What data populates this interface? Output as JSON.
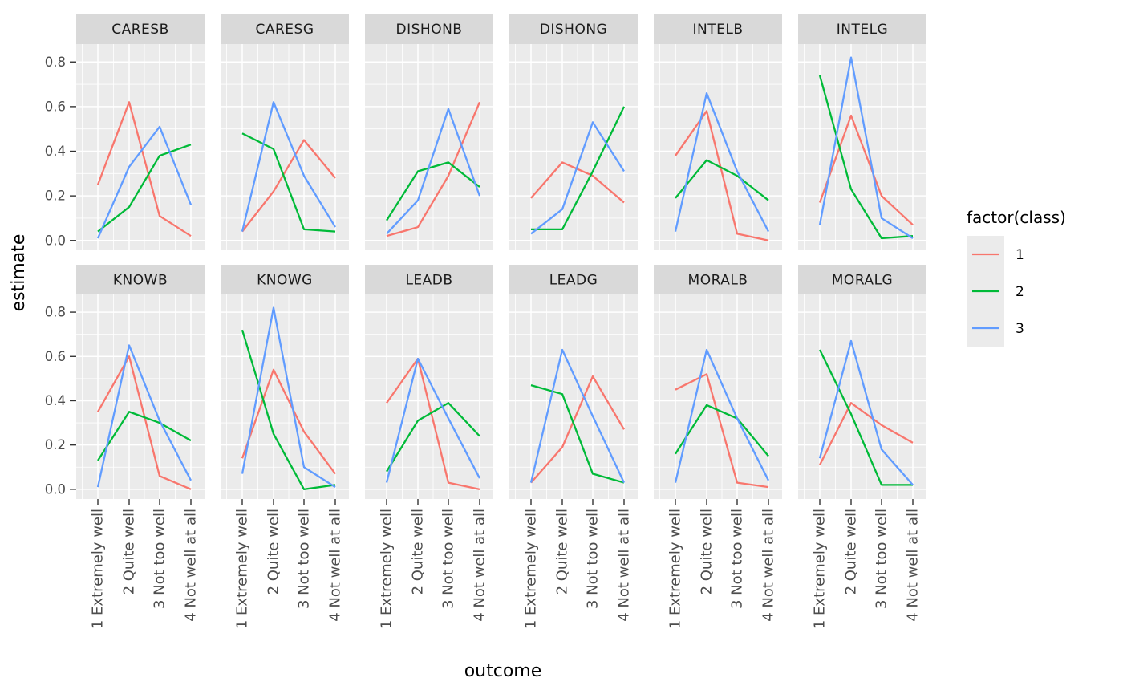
{
  "chart_data": {
    "type": "line",
    "title": "",
    "xlabel": "outcome",
    "ylabel": "estimate",
    "categories": [
      "1 Extremely well",
      "2 Quite well",
      "3 Not too well",
      "4 Not well at all"
    ],
    "y_ticks": [
      "0.0",
      "0.2",
      "0.4",
      "0.6",
      "0.8"
    ],
    "ylim": [
      -0.04,
      0.88
    ],
    "grid": true,
    "legend": {
      "title": "factor(class)",
      "position": "right",
      "entries": [
        {
          "label": "1",
          "color": "#F8766D"
        },
        {
          "label": "2",
          "color": "#00BA38"
        },
        {
          "label": "3",
          "color": "#619CFF"
        }
      ]
    },
    "facets": [
      {
        "label": "CARESB",
        "series": [
          {
            "name": "1",
            "values": [
              0.25,
              0.62,
              0.11,
              0.02
            ]
          },
          {
            "name": "2",
            "values": [
              0.04,
              0.15,
              0.38,
              0.43
            ]
          },
          {
            "name": "3",
            "values": [
              0.01,
              0.33,
              0.51,
              0.16
            ]
          }
        ]
      },
      {
        "label": "CARESG",
        "series": [
          {
            "name": "1",
            "values": [
              0.04,
              0.22,
              0.45,
              0.28
            ]
          },
          {
            "name": "2",
            "values": [
              0.48,
              0.41,
              0.05,
              0.04
            ]
          },
          {
            "name": "3",
            "values": [
              0.04,
              0.62,
              0.29,
              0.06
            ]
          }
        ]
      },
      {
        "label": "DISHONB",
        "series": [
          {
            "name": "1",
            "values": [
              0.02,
              0.06,
              0.29,
              0.62
            ]
          },
          {
            "name": "2",
            "values": [
              0.09,
              0.31,
              0.35,
              0.24
            ]
          },
          {
            "name": "3",
            "values": [
              0.03,
              0.18,
              0.59,
              0.2
            ]
          }
        ]
      },
      {
        "label": "DISHONG",
        "series": [
          {
            "name": "1",
            "values": [
              0.19,
              0.35,
              0.29,
              0.17
            ]
          },
          {
            "name": "2",
            "values": [
              0.05,
              0.05,
              0.31,
              0.6
            ]
          },
          {
            "name": "3",
            "values": [
              0.03,
              0.14,
              0.53,
              0.31
            ]
          }
        ]
      },
      {
        "label": "INTELB",
        "series": [
          {
            "name": "1",
            "values": [
              0.38,
              0.58,
              0.03,
              0.0
            ]
          },
          {
            "name": "2",
            "values": [
              0.19,
              0.36,
              0.29,
              0.18
            ]
          },
          {
            "name": "3",
            "values": [
              0.04,
              0.66,
              0.31,
              0.04
            ]
          }
        ]
      },
      {
        "label": "INTELG",
        "series": [
          {
            "name": "1",
            "values": [
              0.17,
              0.56,
              0.2,
              0.07
            ]
          },
          {
            "name": "2",
            "values": [
              0.74,
              0.23,
              0.01,
              0.02
            ]
          },
          {
            "name": "3",
            "values": [
              0.07,
              0.82,
              0.1,
              0.01
            ]
          }
        ]
      },
      {
        "label": "KNOWB",
        "series": [
          {
            "name": "1",
            "values": [
              0.35,
              0.6,
              0.06,
              0.0
            ]
          },
          {
            "name": "2",
            "values": [
              0.13,
              0.35,
              0.3,
              0.22
            ]
          },
          {
            "name": "3",
            "values": [
              0.01,
              0.65,
              0.31,
              0.04
            ]
          }
        ]
      },
      {
        "label": "KNOWG",
        "series": [
          {
            "name": "1",
            "values": [
              0.14,
              0.54,
              0.26,
              0.07
            ]
          },
          {
            "name": "2",
            "values": [
              0.72,
              0.25,
              0.0,
              0.02
            ]
          },
          {
            "name": "3",
            "values": [
              0.07,
              0.82,
              0.1,
              0.01
            ]
          }
        ]
      },
      {
        "label": "LEADB",
        "series": [
          {
            "name": "1",
            "values": [
              0.39,
              0.59,
              0.03,
              0.0
            ]
          },
          {
            "name": "2",
            "values": [
              0.08,
              0.31,
              0.39,
              0.24
            ]
          },
          {
            "name": "3",
            "values": [
              0.03,
              0.59,
              0.32,
              0.05
            ]
          }
        ]
      },
      {
        "label": "LEADG",
        "series": [
          {
            "name": "1",
            "values": [
              0.03,
              0.19,
              0.51,
              0.27
            ]
          },
          {
            "name": "2",
            "values": [
              0.47,
              0.43,
              0.07,
              0.03
            ]
          },
          {
            "name": "3",
            "values": [
              0.03,
              0.63,
              0.33,
              0.03
            ]
          }
        ]
      },
      {
        "label": "MORALB",
        "series": [
          {
            "name": "1",
            "values": [
              0.45,
              0.52,
              0.03,
              0.01
            ]
          },
          {
            "name": "2",
            "values": [
              0.16,
              0.38,
              0.32,
              0.15
            ]
          },
          {
            "name": "3",
            "values": [
              0.03,
              0.63,
              0.32,
              0.04
            ]
          }
        ]
      },
      {
        "label": "MORALG",
        "series": [
          {
            "name": "1",
            "values": [
              0.11,
              0.39,
              0.29,
              0.21
            ]
          },
          {
            "name": "2",
            "values": [
              0.63,
              0.34,
              0.02,
              0.02
            ]
          },
          {
            "name": "3",
            "values": [
              0.14,
              0.67,
              0.18,
              0.02
            ]
          }
        ]
      }
    ],
    "colors": {
      "panel_bg": "#EBEBEB",
      "strip_bg": "#D9D9D9",
      "grid": "#FFFFFF",
      "tick_label": "#4D4D4D",
      "strip_text": "#1A1A1A",
      "axis_title": "#000000",
      "tick_mark": "#333333"
    }
  }
}
